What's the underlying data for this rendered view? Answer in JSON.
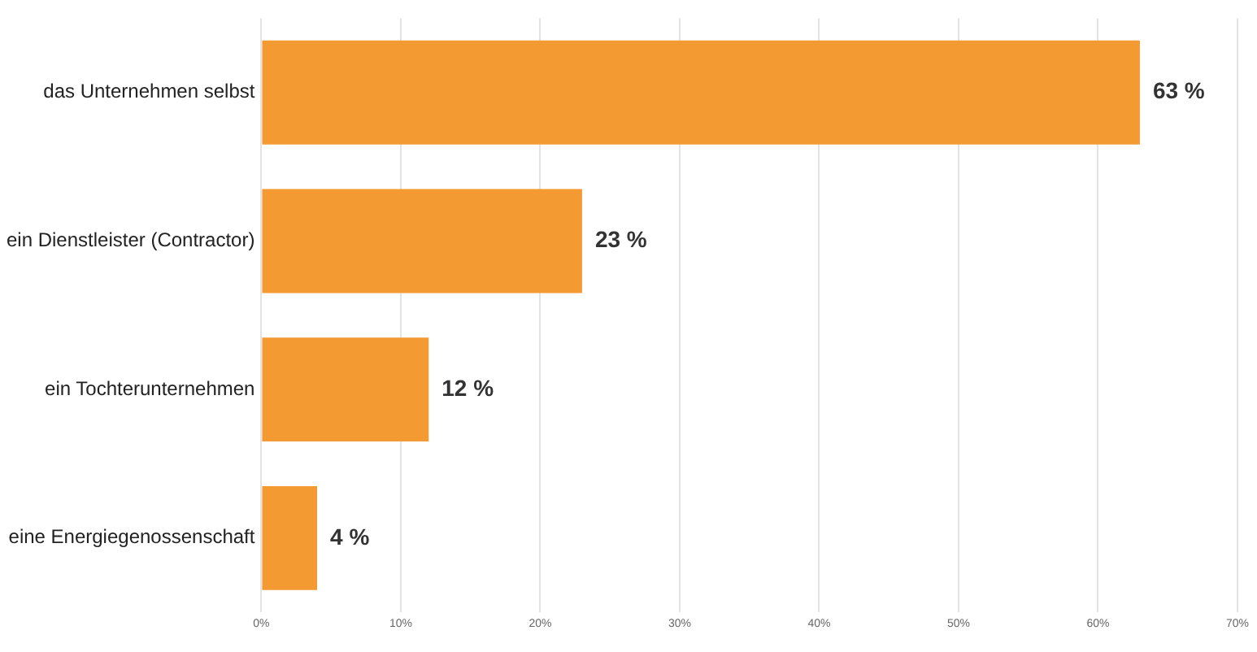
{
  "chart_data": {
    "type": "bar",
    "orientation": "horizontal",
    "categories": [
      "das Unternehmen selbst",
      "ein Dienstleister (Contractor)",
      "ein Tochterunternehmen",
      "eine Energiegenossenschaft"
    ],
    "values": [
      63,
      23,
      12,
      4
    ],
    "value_labels": [
      "63 %",
      "23 %",
      "12 %",
      "4 %"
    ],
    "color": "#f39a33",
    "xlim": [
      0,
      70
    ],
    "xticks": [
      {
        "value": 0,
        "label": "0%"
      },
      {
        "value": 10,
        "label": "10%"
      },
      {
        "value": 20,
        "label": "20%"
      },
      {
        "value": 30,
        "label": "30%"
      },
      {
        "value": 40,
        "label": "40%"
      },
      {
        "value": 50,
        "label": "50%"
      },
      {
        "value": 60,
        "label": "60%"
      },
      {
        "value": 70,
        "label": "70%"
      }
    ],
    "grid": "x",
    "legend": false
  }
}
